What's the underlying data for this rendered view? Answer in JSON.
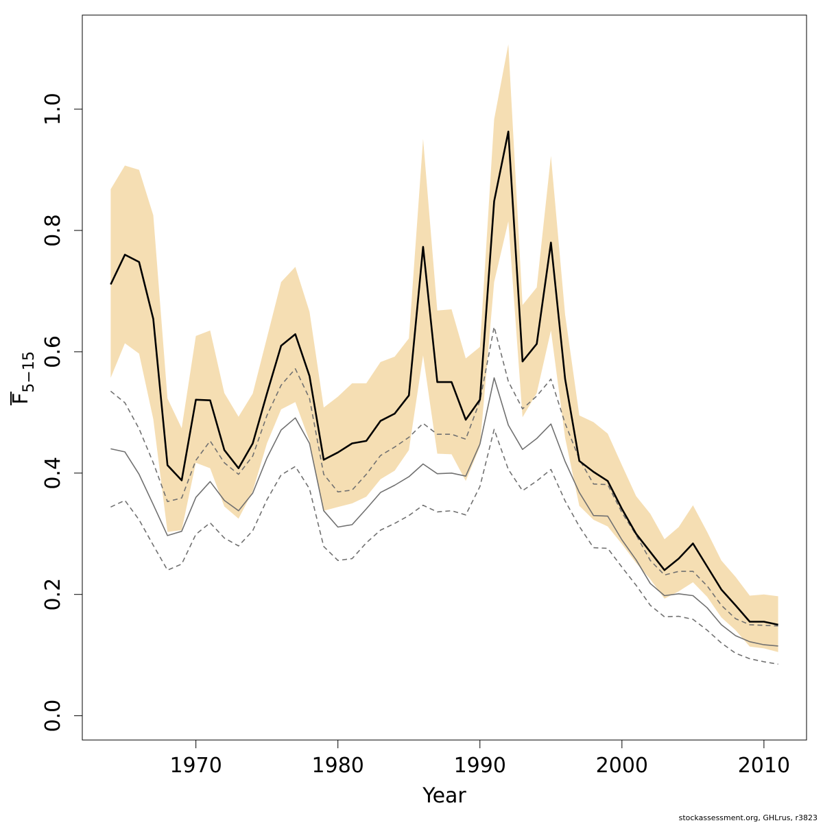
{
  "chart_data": {
    "type": "line",
    "xlabel": "Year",
    "ylabel": {
      "main": "F",
      "sub": "5−15"
    },
    "xlim": [
      1962,
      2013
    ],
    "ylim": [
      -0.04,
      1.155
    ],
    "x_ticks": [
      1970,
      1980,
      1990,
      2000,
      2010
    ],
    "x_tick_labels": [
      "1970",
      "1980",
      "1990",
      "2000",
      "2010"
    ],
    "y_ticks": [
      0.0,
      0.2,
      0.4,
      0.6,
      0.8,
      1.0
    ],
    "y_tick_labels": [
      "0.0",
      "0.2",
      "0.4",
      "0.6",
      "0.8",
      "1.0"
    ],
    "grid": false,
    "band_color": "#f5deb3",
    "years": [
      1964,
      1965,
      1966,
      1967,
      1968,
      1969,
      1970,
      1971,
      1972,
      1973,
      1974,
      1975,
      1976,
      1977,
      1978,
      1979,
      1980,
      1981,
      1982,
      1983,
      1984,
      1985,
      1986,
      1987,
      1988,
      1989,
      1990,
      1991,
      1992,
      1993,
      1994,
      1995,
      1996,
      1997,
      1998,
      1999,
      2000,
      2001,
      2002,
      2003,
      2004,
      2005,
      2006,
      2007,
      2008,
      2009,
      2010,
      2011
    ],
    "series": [
      {
        "role": "band_upper",
        "color": "#f5deb3",
        "values": [
          0.868,
          0.907,
          0.9,
          0.825,
          0.523,
          0.474,
          0.626,
          0.635,
          0.532,
          0.493,
          0.531,
          0.623,
          0.715,
          0.74,
          0.666,
          0.508,
          0.526,
          0.548,
          0.548,
          0.583,
          0.592,
          0.622,
          0.951,
          0.668,
          0.67,
          0.589,
          0.608,
          0.983,
          1.107,
          0.677,
          0.706,
          0.923,
          0.661,
          0.495,
          0.484,
          0.465,
          0.413,
          0.362,
          0.333,
          0.291,
          0.311,
          0.347,
          0.303,
          0.256,
          0.229,
          0.198,
          0.2,
          0.197
        ]
      },
      {
        "role": "band_lower",
        "color": "#f5deb3",
        "values": [
          0.557,
          0.614,
          0.597,
          0.489,
          0.303,
          0.306,
          0.417,
          0.408,
          0.345,
          0.325,
          0.37,
          0.449,
          0.505,
          0.517,
          0.453,
          0.338,
          0.344,
          0.35,
          0.361,
          0.39,
          0.404,
          0.438,
          0.594,
          0.432,
          0.431,
          0.387,
          0.444,
          0.715,
          0.815,
          0.492,
          0.532,
          0.635,
          0.458,
          0.346,
          0.323,
          0.312,
          0.283,
          0.252,
          0.225,
          0.193,
          0.205,
          0.22,
          0.196,
          0.162,
          0.141,
          0.114,
          0.111,
          0.105
        ]
      },
      {
        "role": "estimate",
        "color": "#000000",
        "values": [
          0.711,
          0.76,
          0.748,
          0.654,
          0.413,
          0.388,
          0.521,
          0.52,
          0.438,
          0.408,
          0.449,
          0.531,
          0.61,
          0.629,
          0.56,
          0.422,
          0.434,
          0.449,
          0.453,
          0.486,
          0.498,
          0.528,
          0.773,
          0.55,
          0.55,
          0.488,
          0.521,
          0.848,
          0.963,
          0.584,
          0.613,
          0.78,
          0.555,
          0.42,
          0.402,
          0.387,
          0.341,
          0.3,
          0.27,
          0.24,
          0.259,
          0.284,
          0.246,
          0.208,
          0.182,
          0.155,
          0.155,
          0.15
        ]
      },
      {
        "role": "reference",
        "color": "#707070",
        "values": [
          0.44,
          0.435,
          0.398,
          0.348,
          0.297,
          0.304,
          0.36,
          0.386,
          0.355,
          0.338,
          0.367,
          0.425,
          0.471,
          0.491,
          0.449,
          0.338,
          0.311,
          0.315,
          0.341,
          0.368,
          0.38,
          0.394,
          0.415,
          0.399,
          0.4,
          0.395,
          0.448,
          0.557,
          0.479,
          0.439,
          0.457,
          0.481,
          0.419,
          0.368,
          0.33,
          0.329,
          0.29,
          0.257,
          0.218,
          0.198,
          0.201,
          0.198,
          0.178,
          0.15,
          0.132,
          0.122,
          0.117,
          0.115
        ]
      },
      {
        "role": "reference_upper",
        "color": "#707070",
        "dashed": true,
        "values": [
          0.535,
          0.516,
          0.473,
          0.417,
          0.353,
          0.359,
          0.421,
          0.453,
          0.417,
          0.398,
          0.428,
          0.495,
          0.545,
          0.572,
          0.523,
          0.398,
          0.369,
          0.372,
          0.398,
          0.429,
          0.443,
          0.459,
          0.482,
          0.464,
          0.464,
          0.456,
          0.519,
          0.641,
          0.551,
          0.506,
          0.527,
          0.555,
          0.482,
          0.423,
          0.382,
          0.381,
          0.335,
          0.298,
          0.256,
          0.232,
          0.238,
          0.238,
          0.214,
          0.182,
          0.16,
          0.15,
          0.149,
          0.148
        ]
      },
      {
        "role": "reference_lower",
        "color": "#707070",
        "dashed": true,
        "values": [
          0.344,
          0.355,
          0.323,
          0.281,
          0.24,
          0.25,
          0.299,
          0.318,
          0.293,
          0.28,
          0.305,
          0.356,
          0.397,
          0.411,
          0.374,
          0.279,
          0.256,
          0.259,
          0.285,
          0.306,
          0.317,
          0.33,
          0.347,
          0.336,
          0.338,
          0.331,
          0.378,
          0.472,
          0.406,
          0.371,
          0.387,
          0.406,
          0.354,
          0.312,
          0.277,
          0.276,
          0.245,
          0.215,
          0.182,
          0.163,
          0.164,
          0.159,
          0.141,
          0.12,
          0.103,
          0.094,
          0.089,
          0.085
        ]
      }
    ]
  },
  "footer": {
    "credit": "stockassessment.org, GHLrus, r3823"
  }
}
